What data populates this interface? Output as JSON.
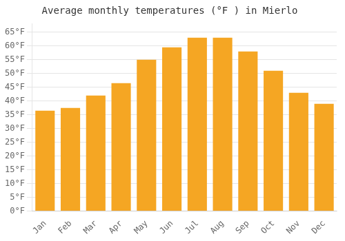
{
  "chart_data": {
    "type": "bar",
    "title": "Average monthly temperatures (°F ) in Mierlo",
    "categories": [
      "Jan",
      "Feb",
      "Mar",
      "Apr",
      "May",
      "Jun",
      "Jul",
      "Aug",
      "Sep",
      "Oct",
      "Nov",
      "Dec"
    ],
    "values": [
      36.5,
      37.5,
      42.0,
      46.5,
      55.0,
      59.5,
      63.0,
      63.0,
      58.0,
      51.0,
      43.0,
      39.0
    ],
    "color": "#F5A623",
    "ylim": [
      0,
      68
    ],
    "yticks": [
      {
        "value": 0,
        "label": "0°F"
      },
      {
        "value": 5,
        "label": "5°F"
      },
      {
        "value": 10,
        "label": "10°F"
      },
      {
        "value": 15,
        "label": "15°F"
      },
      {
        "value": 20,
        "label": "20°F"
      },
      {
        "value": 25,
        "label": "25°F"
      },
      {
        "value": 30,
        "label": "30°F"
      },
      {
        "value": 35,
        "label": "35°F"
      },
      {
        "value": 40,
        "label": "40°F"
      },
      {
        "value": 45,
        "label": "45°F"
      },
      {
        "value": 50,
        "label": "50°F"
      },
      {
        "value": 55,
        "label": "55°F"
      },
      {
        "value": 60,
        "label": "60°F"
      },
      {
        "value": 65,
        "label": "65°F"
      }
    ],
    "grid": true
  }
}
